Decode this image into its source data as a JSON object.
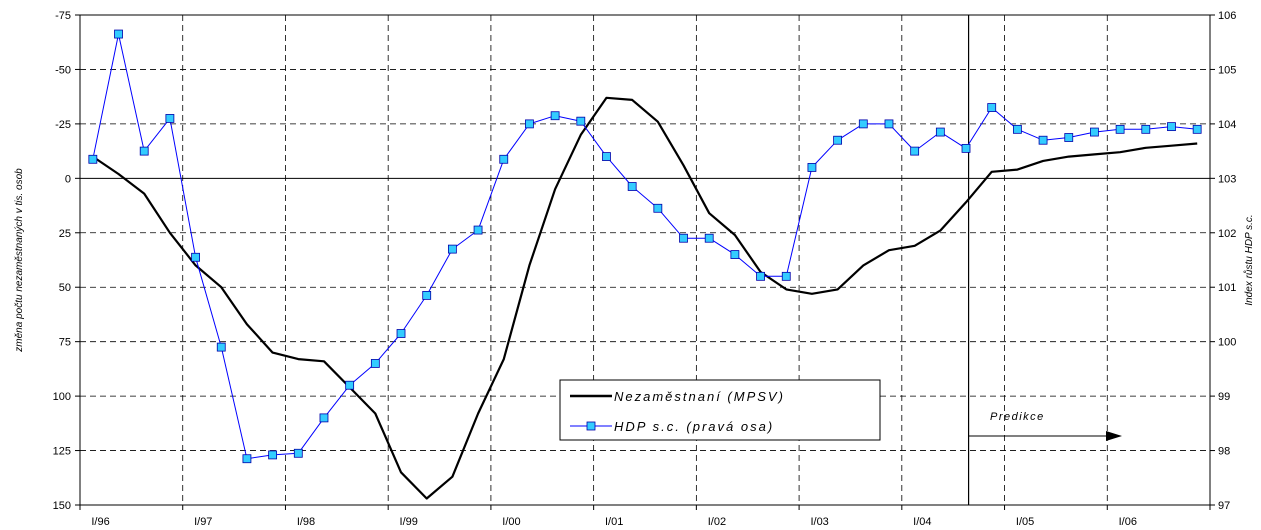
{
  "chart_data": {
    "type": "line",
    "ylabel": "změna počtu nezaměstnaných v tis. osob",
    "y2label": "Index růstu HDP s.c.",
    "x_tick_labels": [
      "I/96",
      "I/97",
      "I/98",
      "I/99",
      "I/00",
      "I/01",
      "I/02",
      "I/03",
      "I/04",
      "I/05",
      "I/06"
    ],
    "y_left_range": [
      -75,
      150
    ],
    "y_left_inverted": true,
    "y_left_ticks": [
      "-75",
      "-50",
      "-25",
      "0",
      "25",
      "50",
      "75",
      "100",
      "125",
      "150"
    ],
    "y_right_range": [
      97,
      106
    ],
    "y_right_ticks": [
      "97",
      "98",
      "99",
      "100",
      "101",
      "102",
      "103",
      "104",
      "105",
      "106"
    ],
    "grid": true,
    "legend_position": "bottom-center",
    "series": [
      {
        "name": "Nezaměstnaní (MPSV)",
        "axis": "left",
        "color": "#000000",
        "marker": "none",
        "x": [
          0,
          0.25,
          0.5,
          0.75,
          1,
          1.25,
          1.5,
          1.75,
          2,
          2.25,
          2.5,
          2.75,
          3,
          3.25,
          3.5,
          3.75,
          4,
          4.25,
          4.5,
          4.75,
          5,
          5.25,
          5.5,
          5.75,
          6,
          6.25,
          6.5,
          6.75,
          7,
          7.25,
          7.5,
          7.75,
          8,
          8.25,
          8.5,
          8.75,
          9,
          9.25,
          9.5,
          9.75,
          10,
          10.25,
          10.5,
          10.75
        ],
        "values": [
          -10,
          -2,
          7,
          25,
          40,
          50,
          67,
          80,
          83,
          84,
          96,
          108,
          135,
          147,
          137,
          108,
          83,
          40,
          5,
          -20,
          -37,
          -36,
          -26,
          -6,
          16,
          26,
          43,
          51,
          53,
          51,
          40,
          33,
          31,
          24,
          11,
          -3,
          -4,
          -8,
          -10,
          -11,
          -12,
          -14,
          -15,
          -16
        ]
      },
      {
        "name": "HDP s.c. (pravá osa)",
        "axis": "right",
        "color": "#0000ff",
        "marker": "square",
        "marker_fill": "#33ccff",
        "x": [
          0,
          0.25,
          0.5,
          0.75,
          1,
          1.25,
          1.5,
          1.75,
          2,
          2.25,
          2.5,
          2.75,
          3,
          3.25,
          3.5,
          3.75,
          4,
          4.25,
          4.5,
          4.75,
          5,
          5.25,
          5.5,
          5.75,
          6,
          6.25,
          6.5,
          6.75,
          7,
          7.25,
          7.5,
          7.75,
          8,
          8.25,
          8.5,
          8.75,
          9,
          9.25,
          9.5,
          9.75,
          10,
          10.25,
          10.5,
          10.75
        ],
        "values": [
          103.35,
          105.65,
          103.5,
          104.1,
          101.55,
          99.9,
          97.85,
          97.92,
          97.95,
          98.6,
          99.2,
          99.6,
          100.15,
          100.85,
          101.7,
          102.05,
          103.35,
          104.0,
          104.15,
          104.05,
          103.4,
          102.85,
          102.45,
          101.9,
          101.9,
          101.6,
          101.2,
          101.2,
          103.2,
          103.7,
          104.0,
          104.0,
          103.5,
          103.85,
          103.55,
          104.3,
          103.9,
          103.7,
          103.75,
          103.85,
          103.9,
          103.9,
          103.95,
          103.9
        ]
      }
    ],
    "annotations": [
      {
        "text": "Predikce",
        "from_x": 8.65,
        "arrow": "right"
      }
    ]
  }
}
